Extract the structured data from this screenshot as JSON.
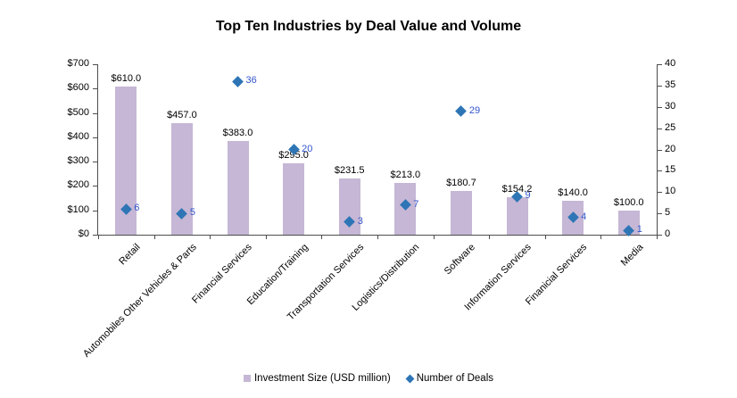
{
  "chart_data": {
    "type": "combo-bar-scatter",
    "title": "Top Ten Industries by Deal Value and Volume",
    "categories": [
      "Retail",
      "Automobiles Other Vehicles & Parts",
      "Financial Services",
      "Education/Training",
      "Transportation Services",
      "Logistics/Distribution",
      "Software",
      "Information Services",
      "Finanicial Services",
      "Media"
    ],
    "series": [
      {
        "name": "Investment Size (USD million)",
        "type": "bar",
        "axis": "left",
        "values": [
          610.0,
          457.0,
          383.0,
          295.0,
          231.5,
          213.0,
          180.7,
          154.2,
          140.0,
          100.0
        ],
        "labels": [
          "$610.0",
          "$457.0",
          "$383.0",
          "$295.0",
          "$231.5",
          "$213.0",
          "$180.7",
          "$154.2",
          "$140.0",
          "$100.0"
        ]
      },
      {
        "name": "Number of Deals",
        "type": "scatter",
        "marker": "diamond",
        "axis": "right",
        "values": [
          6,
          5,
          36,
          20,
          3,
          7,
          29,
          9,
          4,
          1
        ],
        "labels": [
          "6",
          "5",
          "36",
          "20",
          "3",
          "7",
          "29",
          "9",
          "4",
          "1"
        ]
      }
    ],
    "left_axis": {
      "min": 0,
      "max": 700,
      "tick_labels": [
        "$0",
        "$100",
        "$200",
        "$300",
        "$400",
        "$500",
        "$600",
        "$700"
      ]
    },
    "right_axis": {
      "min": 0,
      "max": 40,
      "tick_labels": [
        "0",
        "5",
        "10",
        "15",
        "20",
        "25",
        "30",
        "35",
        "40"
      ]
    },
    "legend": {
      "position": "bottom"
    },
    "grid": "off",
    "colors": {
      "bar": "#C5B7D5",
      "marker": "#2E75B6",
      "deal_label": "#3355CC",
      "bar_label": "#000000",
      "axis": "#4D4D4D",
      "background": "#FFFFFF"
    }
  }
}
